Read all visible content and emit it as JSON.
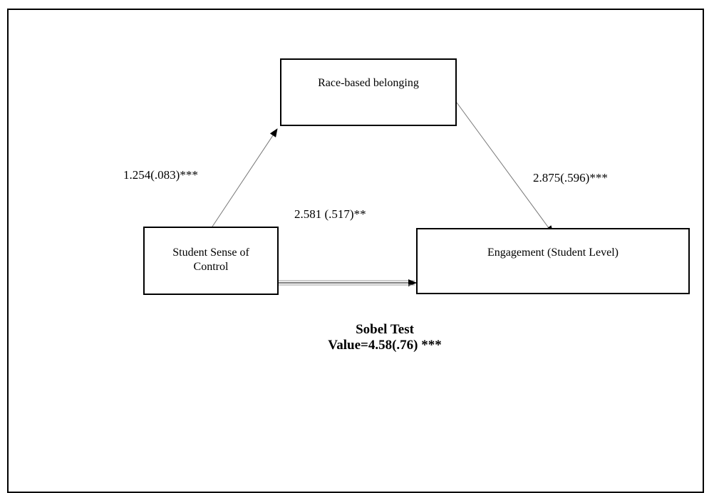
{
  "diagram": {
    "nodes": {
      "mediator": {
        "label": "Race-based belonging"
      },
      "predictor": {
        "label_line1": "Student Sense of",
        "label_line2": "Control"
      },
      "outcome": {
        "label": "Engagement (Student Level)"
      }
    },
    "paths": {
      "a": {
        "from": "predictor",
        "to": "mediator",
        "label": "1.254(.083)***"
      },
      "b": {
        "from": "mediator",
        "to": "outcome",
        "label": "2.875(.596)***"
      },
      "c": {
        "from": "predictor",
        "to": "outcome",
        "label": "2.581 (.517)**"
      }
    },
    "sobel": {
      "title": "Sobel Test",
      "value": "Value=4.58(.76) ***"
    }
  }
}
